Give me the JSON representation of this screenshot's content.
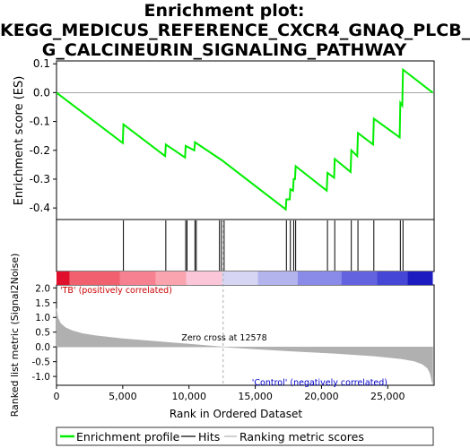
{
  "title_lines": [
    "Enrichment plot:",
    "KEGG_MEDICUS_REFERENCE_CXCR4_GNAQ_PLCB_",
    "G_CALCINEURIN_SIGNALING_PATHWAY"
  ],
  "chart_data": {
    "type": "line",
    "title": "Enrichment plot: KEGG_MEDICUS_REFERENCE_CXCR4_GNAQ_PLCB_G_CALCINEURIN_SIGNALING_PATHWAY",
    "xlabel": "Rank in Ordered Dataset",
    "xlim": [
      0,
      28500
    ],
    "x_ticks": [
      0,
      5000,
      10000,
      15000,
      20000,
      25000
    ],
    "x_tick_labels": [
      "0",
      "5,000",
      "10,000",
      "15,000",
      "20,000",
      "25,000"
    ],
    "enrichment_panel": {
      "ylabel": "Enrichment score (ES)",
      "ylim": [
        -0.44,
        0.11
      ],
      "y_ticks": [
        0.1,
        0.0,
        -0.1,
        -0.2,
        -0.3,
        -0.4
      ],
      "y_tick_labels": [
        "0.1",
        "0.0",
        "-0.1",
        "-0.2",
        "-0.3",
        "-0.4"
      ],
      "series": [
        {
          "name": "Enrichment profile",
          "color": "#00ee00",
          "x": [
            0,
            5000,
            5050,
            8200,
            8250,
            9700,
            9750,
            10400,
            10450,
            12500,
            17300,
            17350,
            17600,
            17650,
            17850,
            17900,
            18000,
            18050,
            20400,
            20450,
            20950,
            21000,
            22200,
            22250,
            22700,
            22750,
            23900,
            23950,
            25900,
            25950,
            26100,
            26150,
            28400
          ],
          "y": [
            0.0,
            -0.175,
            -0.11,
            -0.22,
            -0.18,
            -0.225,
            -0.185,
            -0.2,
            -0.172,
            -0.235,
            -0.405,
            -0.37,
            -0.37,
            -0.335,
            -0.34,
            -0.3,
            -0.3,
            -0.255,
            -0.34,
            -0.278,
            -0.295,
            -0.23,
            -0.275,
            -0.2,
            -0.22,
            -0.14,
            -0.18,
            -0.09,
            -0.155,
            -0.035,
            -0.045,
            0.08,
            0.0
          ]
        }
      ]
    },
    "hits": {
      "name": "Hits",
      "x": [
        5050,
        8250,
        9750,
        9850,
        10450,
        10550,
        12300,
        12450,
        12650,
        17350,
        17650,
        17900,
        18050,
        20450,
        21000,
        22250,
        22750,
        23950,
        25950,
        26150
      ]
    },
    "color_bar": {
      "segments": [
        {
          "x0": 0,
          "x1": 1000,
          "color": "#e0102c"
        },
        {
          "x0": 1000,
          "x1": 4800,
          "color": "#f0606e"
        },
        {
          "x0": 4800,
          "x1": 7500,
          "color": "#f68190"
        },
        {
          "x0": 7500,
          "x1": 9800,
          "color": "#f9a4ae"
        },
        {
          "x0": 9800,
          "x1": 12500,
          "color": "#fbc6d8"
        },
        {
          "x0": 12500,
          "x1": 15200,
          "color": "#d6d6f4"
        },
        {
          "x0": 15200,
          "x1": 18200,
          "color": "#b3b3ee"
        },
        {
          "x0": 18200,
          "x1": 21500,
          "color": "#8a8ae8"
        },
        {
          "x0": 21500,
          "x1": 24200,
          "color": "#6363e0"
        },
        {
          "x0": 24200,
          "x1": 26500,
          "color": "#4646d6"
        },
        {
          "x0": 26500,
          "x1": 28400,
          "color": "#1c1cc0"
        }
      ]
    },
    "ranked_metric_panel": {
      "ylabel": "Ranked list metric (Signal2Noise)",
      "ylim": [
        -1.3,
        2.1
      ],
      "y_ticks": [
        2.0,
        1.5,
        1.0,
        0.5,
        0.0,
        -0.5,
        -1.0
      ],
      "y_tick_labels": [
        "2.0",
        "1.5",
        "1.0",
        "0.5",
        "0.0",
        "-0.5",
        "-1.0"
      ],
      "series": [
        {
          "name": "Ranking metric scores",
          "color": "#b0b0b0",
          "x": [
            0,
            100,
            300,
            700,
            1200,
            2000,
            3000,
            5000,
            8000,
            11000,
            12578,
            15000,
            18000,
            21000,
            24000,
            26000,
            27000,
            27600,
            28000,
            28200,
            28350,
            28400
          ],
          "y": [
            1.3,
            1.0,
            0.8,
            0.65,
            0.55,
            0.45,
            0.38,
            0.28,
            0.17,
            0.06,
            0.0,
            -0.07,
            -0.15,
            -0.22,
            -0.31,
            -0.4,
            -0.48,
            -0.58,
            -0.72,
            -0.9,
            -1.2,
            -1.25
          ]
        }
      ],
      "positive_label": "'TB' (positively correlated)",
      "negative_label": "'Control' (negatively correlated)",
      "zero_cross_label": "Zero cross at 12578",
      "zero_cross": 12578
    },
    "legend": {
      "position": "bottom",
      "entries": [
        {
          "label": "Enrichment profile",
          "color": "#00ee00"
        },
        {
          "label": "Hits",
          "color": "#000000"
        },
        {
          "label": "Ranking metric scores",
          "color": "#b0b0b0"
        }
      ]
    }
  }
}
